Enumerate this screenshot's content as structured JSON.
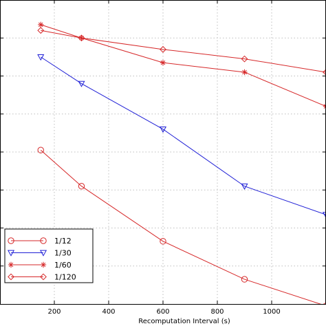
{
  "chart_data": {
    "type": "line",
    "xlabel": "Recomputation Interval (s)",
    "ylabel": "",
    "xlim": [
      0,
      1200
    ],
    "ylim": [
      0,
      8
    ],
    "x_ticks": [
      200,
      400,
      600,
      800,
      1000
    ],
    "grid": true,
    "legend_position": "lower-left",
    "series": [
      {
        "name": "1/12",
        "color": "#d62728",
        "marker": "circle",
        "x": [
          150,
          300,
          600,
          900,
          1200
        ],
        "y": [
          4.05,
          3.1,
          1.65,
          0.65,
          -0.05
        ]
      },
      {
        "name": "1/30",
        "color": "#1f1fd6",
        "marker": "triangle-down",
        "x": [
          150,
          300,
          600,
          900,
          1200
        ],
        "y": [
          6.5,
          5.8,
          4.6,
          3.1,
          2.35
        ]
      },
      {
        "name": "1/60",
        "color": "#d62728",
        "marker": "star",
        "x": [
          150,
          300,
          600,
          900,
          1200
        ],
        "y": [
          7.35,
          7.0,
          6.35,
          6.1,
          5.2
        ]
      },
      {
        "name": "1/120",
        "color": "#d62728",
        "marker": "diamond",
        "x": [
          150,
          300,
          600,
          900,
          1200
        ],
        "y": [
          7.2,
          7.0,
          6.7,
          6.45,
          6.1
        ]
      }
    ]
  }
}
